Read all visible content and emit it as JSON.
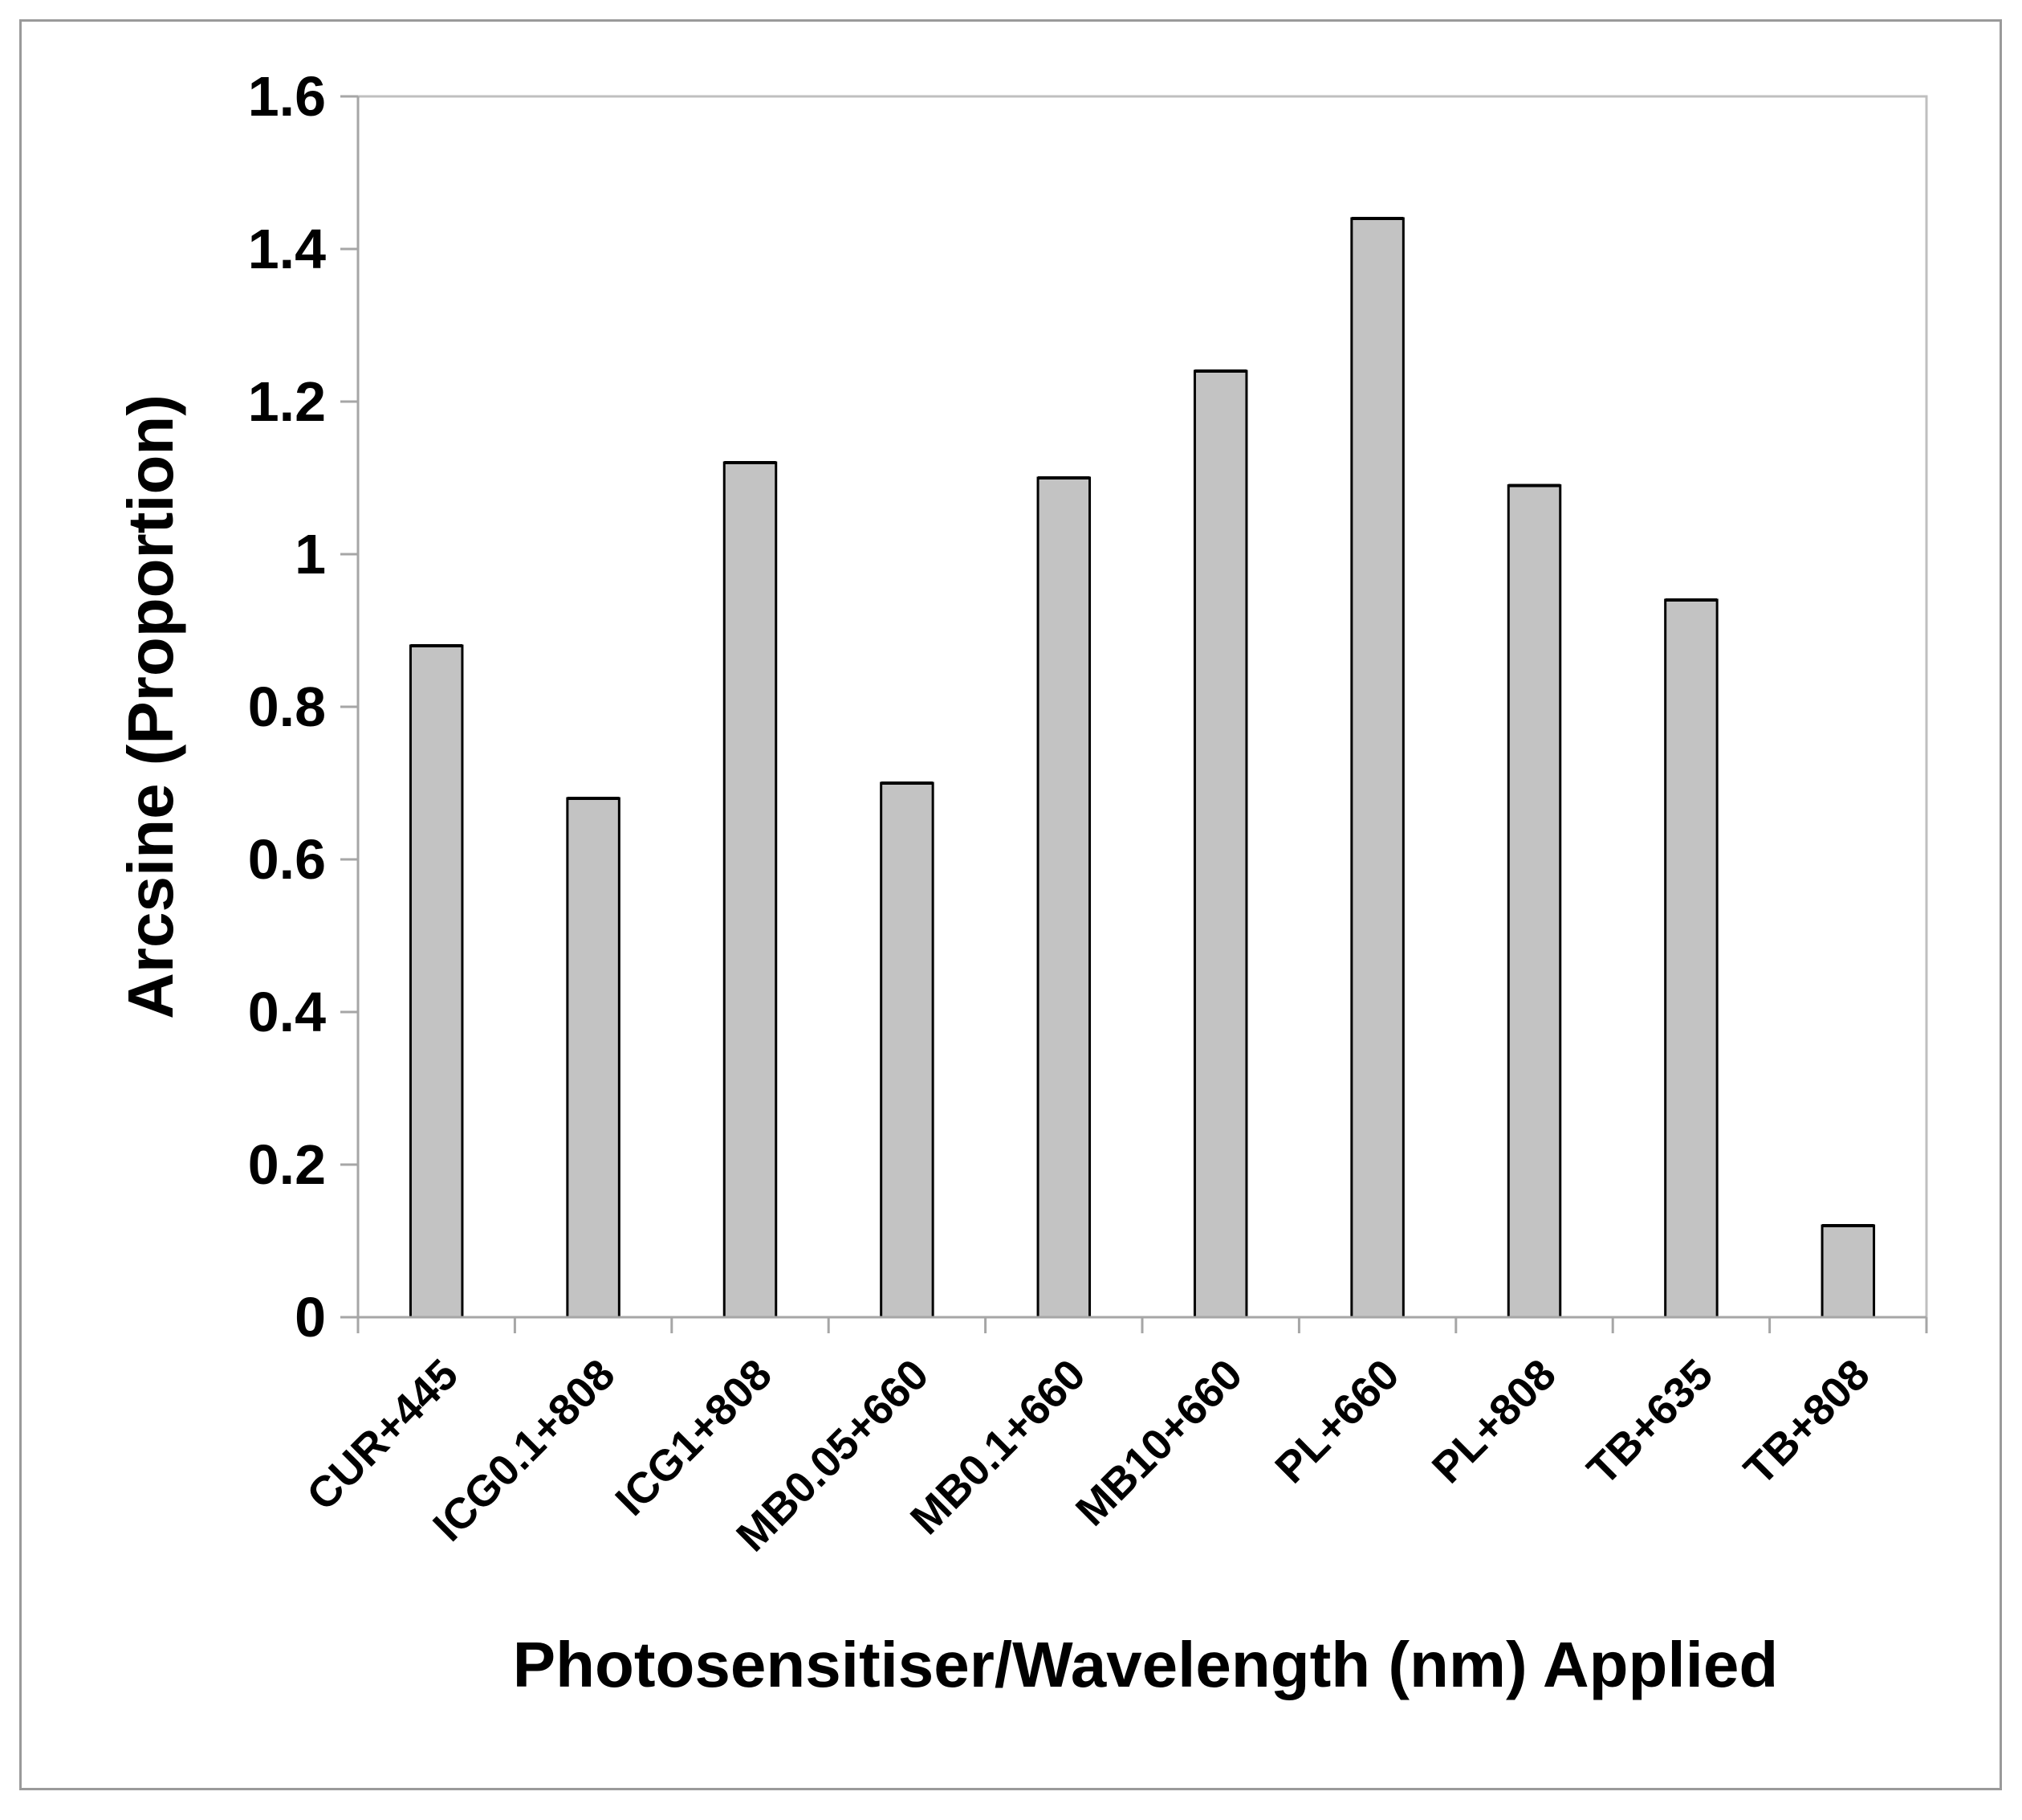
{
  "chart_data": {
    "type": "bar",
    "title": "",
    "xlabel": "Photosensitiser/Wavelength (nm) Applied",
    "ylabel": "Arcsine (Proportion)",
    "categories": [
      "CUR+445",
      "ICG0.1+808",
      "ICG1+808",
      "MB0.05+660",
      "MB0.1+660",
      "MB10+660",
      "PL+660",
      "PL+808",
      "TB+635",
      "TB+808"
    ],
    "values": [
      0.88,
      0.68,
      1.12,
      0.7,
      1.1,
      1.24,
      1.44,
      1.09,
      0.94,
      0.12
    ],
    "ylim": [
      0,
      1.6
    ],
    "yticks": [
      "0",
      "0.2",
      "0.4",
      "0.6",
      "0.8",
      "1",
      "1.2",
      "1.4",
      "1.6"
    ],
    "grid": false,
    "legend": "none",
    "colors": {
      "bar_fill": "#c3c3c3",
      "bar_stroke": "#000000",
      "axis": "#a6a6a6",
      "plot_border": "#bfbfbf"
    }
  }
}
